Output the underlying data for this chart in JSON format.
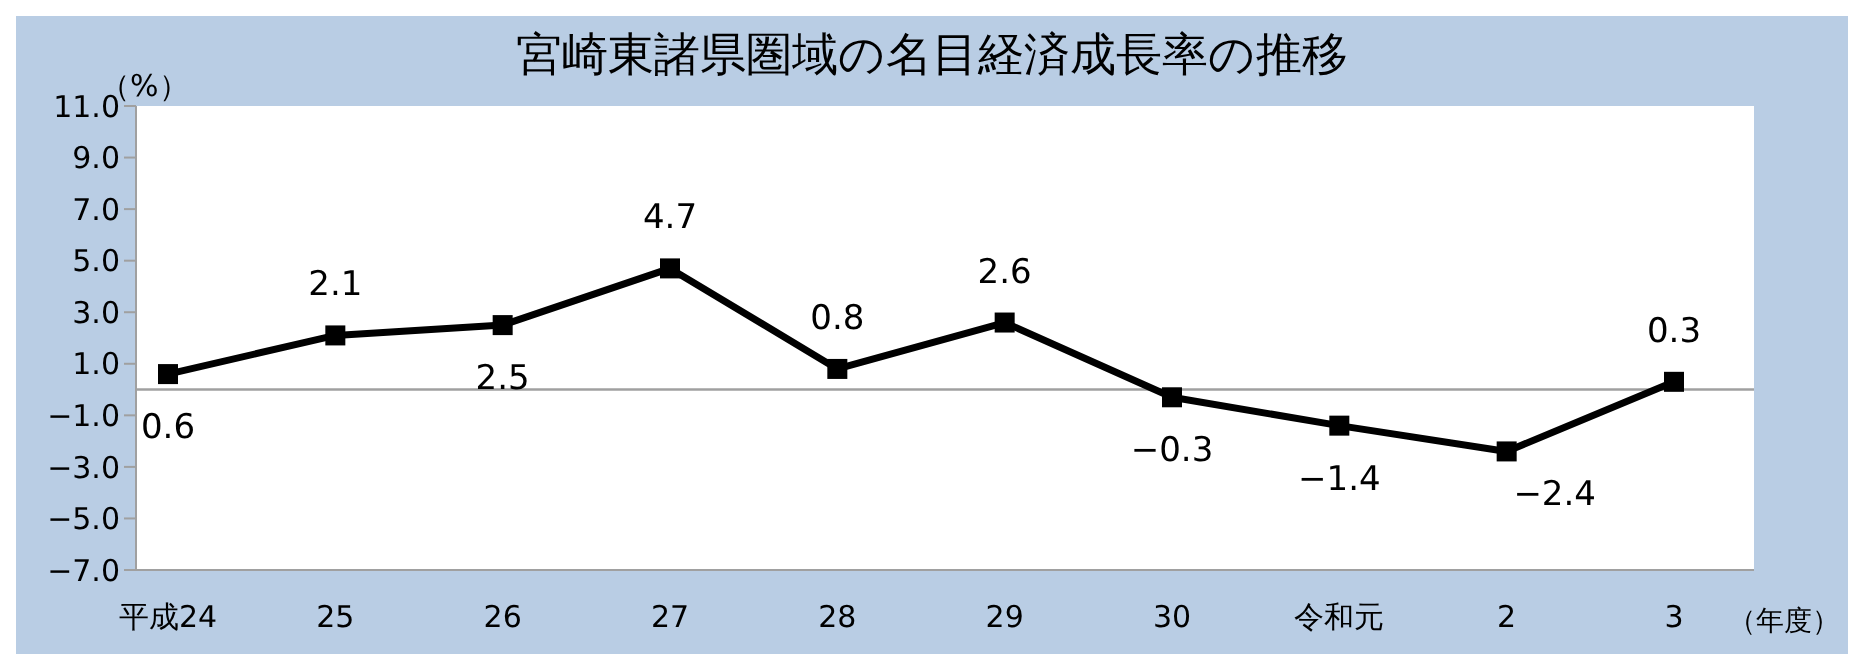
{
  "chart_data": {
    "type": "line",
    "title": "宮崎東諸県圏域の名目経済成長率の推移",
    "ylabel": "（%）",
    "xlabel": "（年度）",
    "categories": [
      "平成24",
      "25",
      "26",
      "27",
      "28",
      "29",
      "30",
      "令和元",
      "2",
      "3"
    ],
    "series": [
      {
        "color": "#000000",
        "values": [
          0.6,
          2.1,
          2.5,
          4.7,
          0.8,
          2.6,
          -0.3,
          -1.4,
          -2.4,
          0.3
        ],
        "value_labels": [
          "0.6",
          "2.1",
          "2.5",
          "4.7",
          "0.8",
          "2.6",
          "−0.3",
          "−1.4",
          "−2.4",
          "0.3"
        ]
      }
    ],
    "ylim": [
      -7,
      11
    ],
    "yticks": [
      {
        "value": -7,
        "label": "−7.0"
      },
      {
        "value": -5,
        "label": "−5.0"
      },
      {
        "value": -3,
        "label": "−3.0"
      },
      {
        "value": -1,
        "label": "−1.0"
      },
      {
        "value": 1,
        "label": "1.0"
      },
      {
        "value": 3,
        "label": "3.0"
      },
      {
        "value": 5,
        "label": "5.0"
      },
      {
        "value": 7,
        "label": "7.0"
      },
      {
        "value": 9,
        "label": "9.0"
      },
      {
        "value": 11,
        "label": "11.0"
      }
    ],
    "ref_lines": [
      {
        "axis": "y",
        "value": 0,
        "color": "#a0a0a0"
      }
    ],
    "marker": "square",
    "line_style": "solid",
    "grid": false,
    "legend": false
  }
}
